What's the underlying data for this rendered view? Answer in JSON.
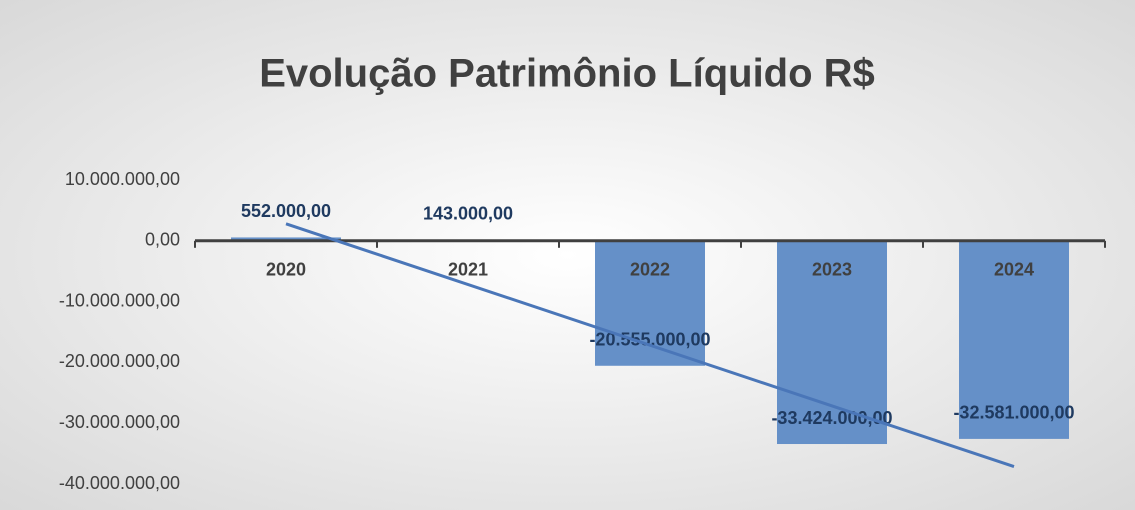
{
  "chart_data": {
    "type": "bar",
    "title": "Evolução Patrimônio Líquido R$",
    "categories": [
      "2020",
      "2021",
      "2022",
      "2023",
      "2024"
    ],
    "values": [
      552000,
      143000,
      -20555000,
      -33424000,
      -32581000
    ],
    "value_labels": [
      "552.000,00",
      "143.000,00",
      "-20.555.000,00",
      "-33.424.000,00",
      "-32.581.000,00"
    ],
    "color": "#6590c8",
    "trendline": "linear",
    "trendline_color": "#4a76b8",
    "ylim": [
      -40000000,
      10000000
    ],
    "yticks": [
      {
        "value": -40000000,
        "label": "-40.000.000,00"
      },
      {
        "value": -30000000,
        "label": "-30.000.000,00"
      },
      {
        "value": -20000000,
        "label": "-20.000.000,00"
      },
      {
        "value": -10000000,
        "label": "-10.000.000,00"
      },
      {
        "value": 0,
        "label": "0,00"
      },
      {
        "value": 10000000,
        "label": "10.000.000,00"
      }
    ]
  }
}
